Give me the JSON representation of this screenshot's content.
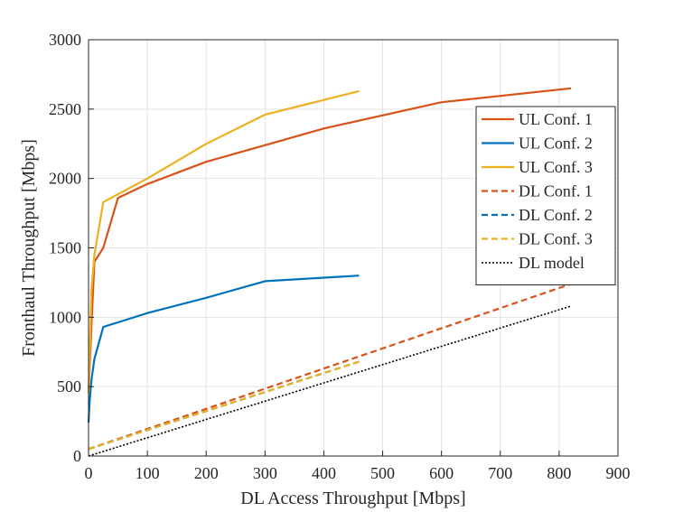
{
  "chart_data": {
    "type": "line",
    "title": "",
    "xlabel": "DL Access Throughput [Mbps]",
    "ylabel": "Fronthaul Throughput [Mbps]",
    "xlim": [
      0,
      900
    ],
    "ylim": [
      0,
      3000
    ],
    "xticks": [
      0,
      100,
      200,
      300,
      400,
      500,
      600,
      700,
      800,
      900
    ],
    "yticks": [
      0,
      500,
      1000,
      1500,
      2000,
      2500,
      3000
    ],
    "grid": true,
    "legend_position": "right",
    "series": [
      {
        "name": "UL Conf. 1",
        "color": "#D95319",
        "dash": "solid",
        "x": [
          0,
          5,
          10,
          25,
          50,
          100,
          200,
          300,
          400,
          600,
          820
        ],
        "y": [
          450,
          950,
          1400,
          1500,
          1860,
          1960,
          2120,
          2240,
          2360,
          2550,
          2650
        ]
      },
      {
        "name": "UL Conf. 2",
        "color": "#0072BD",
        "dash": "solid",
        "x": [
          0,
          2,
          5,
          10,
          25,
          100,
          200,
          300,
          460
        ],
        "y": [
          240,
          400,
          550,
          700,
          930,
          1030,
          1140,
          1260,
          1300
        ]
      },
      {
        "name": "UL Conf. 3",
        "color": "#EDB120",
        "dash": "solid",
        "x": [
          0,
          5,
          10,
          25,
          100,
          200,
          300,
          460
        ],
        "y": [
          450,
          1200,
          1450,
          1830,
          2000,
          2250,
          2460,
          2630
        ]
      },
      {
        "name": "DL Conf. 1",
        "color": "#D95319",
        "dash": "dashed",
        "x": [
          0,
          820
        ],
        "y": [
          50,
          1240
        ]
      },
      {
        "name": "DL Conf. 2",
        "color": "#0072BD",
        "dash": "dashed",
        "x": [
          0,
          460
        ],
        "y": [
          50,
          680
        ]
      },
      {
        "name": "DL Conf. 3",
        "color": "#EDB120",
        "dash": "dashed",
        "x": [
          0,
          460
        ],
        "y": [
          50,
          680
        ]
      },
      {
        "name": "DL model",
        "color": "#000000",
        "dash": "dotted",
        "x": [
          0,
          820
        ],
        "y": [
          0,
          1080
        ]
      }
    ]
  }
}
